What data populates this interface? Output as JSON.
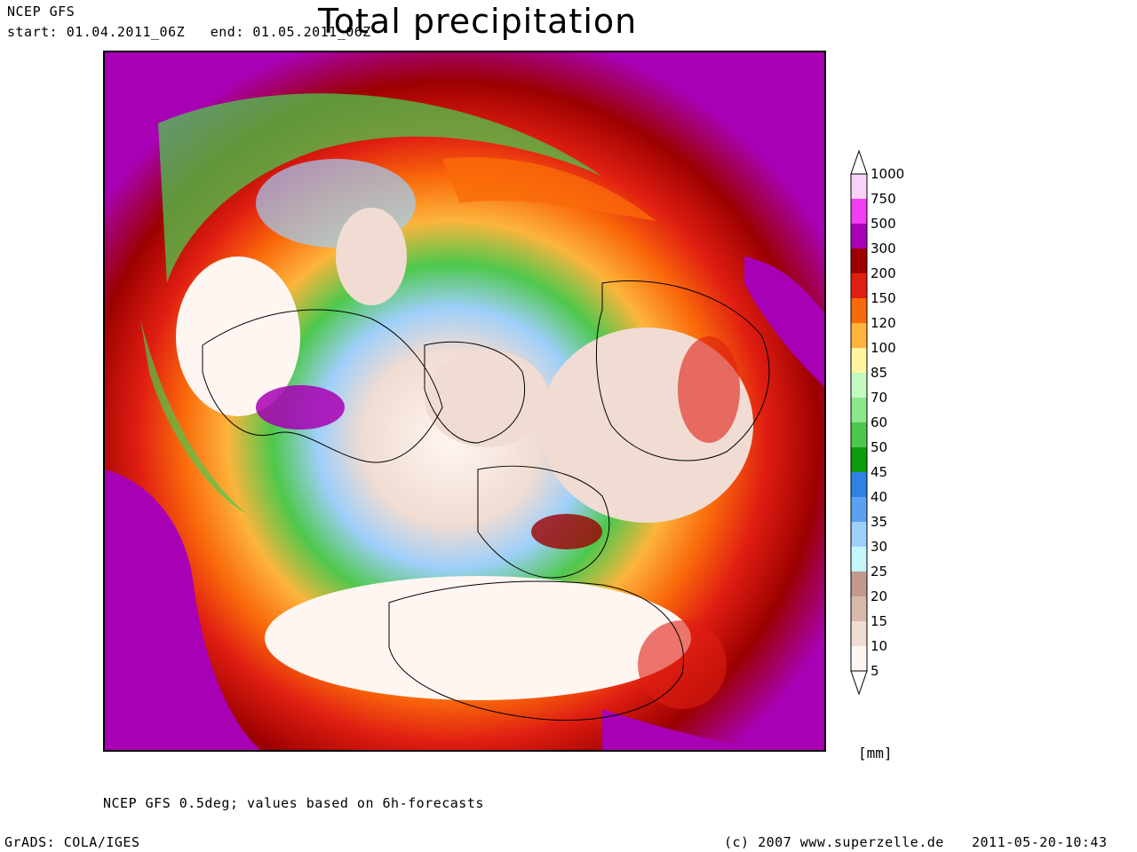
{
  "header": {
    "model": "NCEP GFS",
    "period": "start: 01.04.2011_06Z   end: 01.05.2011_06Z",
    "title": "Total precipitation"
  },
  "legend": {
    "unit": "[mm]",
    "levels": [
      "1000",
      "750",
      "500",
      "300",
      "200",
      "150",
      "120",
      "100",
      "85",
      "70",
      "60",
      "50",
      "45",
      "40",
      "35",
      "30",
      "25",
      "20",
      "15",
      "10",
      "5"
    ],
    "colors": [
      "#fbd2f7",
      "#f23ef0",
      "#a800b4",
      "#9c0000",
      "#e01e12",
      "#fa6a0a",
      "#fcb43c",
      "#fff5a0",
      "#c2fac0",
      "#8ee68a",
      "#4ec84c",
      "#0c9c0c",
      "#2e82e6",
      "#5aa2f0",
      "#9ecffa",
      "#c4f5fa",
      "#c39a8c",
      "#d8b8aa",
      "#f0dcd2",
      "#fff6f2"
    ]
  },
  "footer": {
    "note": "NCEP GFS 0.5deg; values based on 6h-forecasts",
    "software": "GrADS: COLA/IGES",
    "credit": "(c) 2007 www.superzelle.de",
    "timestamp": "2011-05-20-10:43"
  }
}
